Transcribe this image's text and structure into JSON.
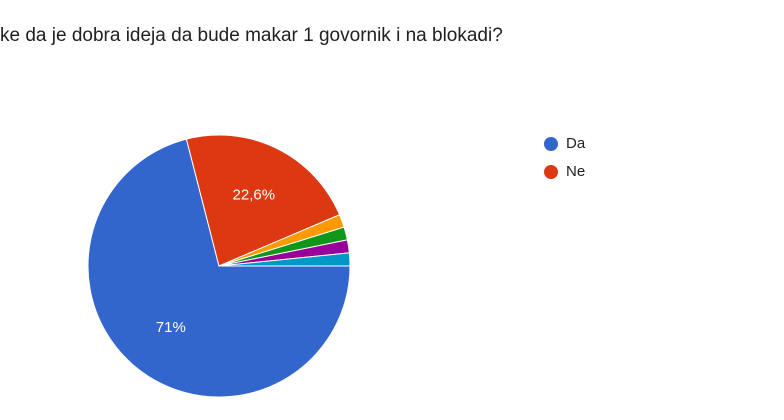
{
  "chart_data": {
    "type": "pie",
    "title": "ke da je dobra ideja da bude makar 1 govornik i na blokadi?",
    "categories": [
      "Da",
      "Ne",
      null,
      null,
      null,
      null
    ],
    "values": [
      71,
      22.6,
      1.6,
      1.6,
      1.6,
      1.6
    ],
    "value_labels": [
      "71%",
      "22,6%",
      null,
      null,
      null,
      null
    ],
    "colors": [
      "#3366cc",
      "#dc3912",
      "#ff9900",
      "#109618",
      "#990099",
      "#0099c6"
    ],
    "legend": "right"
  }
}
